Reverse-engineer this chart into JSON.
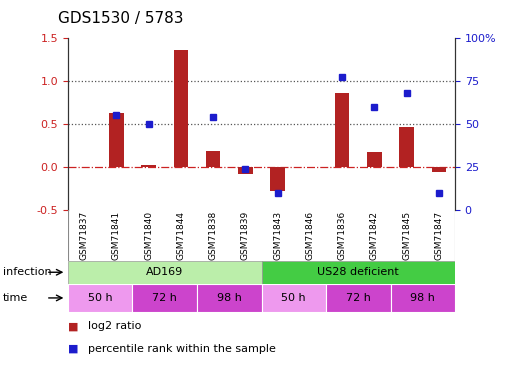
{
  "title": "GDS1530 / 5783",
  "samples": [
    "GSM71837",
    "GSM71841",
    "GSM71840",
    "GSM71844",
    "GSM71838",
    "GSM71839",
    "GSM71843",
    "GSM71846",
    "GSM71836",
    "GSM71842",
    "GSM71845",
    "GSM71847"
  ],
  "log2_ratio": [
    0.0,
    0.63,
    0.02,
    1.35,
    0.18,
    -0.08,
    -0.28,
    0.0,
    0.86,
    0.17,
    0.46,
    -0.06
  ],
  "percentile_rank": [
    null,
    55,
    50,
    null,
    54,
    24,
    10,
    null,
    77,
    60,
    68,
    10
  ],
  "bar_color": "#b22222",
  "dot_color": "#1c1ccc",
  "ylim_left": [
    -0.5,
    1.5
  ],
  "ylim_right": [
    0,
    100
  ],
  "yticks_left": [
    -0.5,
    0.0,
    0.5,
    1.0,
    1.5
  ],
  "yticks_right": [
    0,
    25,
    50,
    75,
    100
  ],
  "ytick_labels_right": [
    "0",
    "25",
    "50",
    "75",
    "100%"
  ],
  "hlines": [
    0.0,
    0.5,
    1.0
  ],
  "hline_styles": [
    "dashdot",
    "dotted",
    "dotted"
  ],
  "hline_colors": [
    "#cc2222",
    "#555555",
    "#555555"
  ],
  "infection_groups": [
    {
      "text": "AD169",
      "start": 0,
      "end": 5,
      "color": "#bbeeaa"
    },
    {
      "text": "US28 deficient",
      "start": 6,
      "end": 11,
      "color": "#44cc44"
    }
  ],
  "time_groups": [
    {
      "text": "50 h",
      "indices": [
        0,
        1
      ],
      "color": "#ee99ee"
    },
    {
      "text": "72 h",
      "indices": [
        2,
        3
      ],
      "color": "#cc44cc"
    },
    {
      "text": "98 h",
      "indices": [
        4,
        5
      ],
      "color": "#cc44cc"
    },
    {
      "text": "50 h",
      "indices": [
        6,
        7
      ],
      "color": "#ee99ee"
    },
    {
      "text": "72 h",
      "indices": [
        8,
        9
      ],
      "color": "#cc44cc"
    },
    {
      "text": "98 h",
      "indices": [
        10,
        11
      ],
      "color": "#cc44cc"
    }
  ],
  "legend_bar_label": "log2 ratio",
  "legend_dot_label": "percentile rank within the sample",
  "infection_row_label": "infection",
  "time_row_label": "time",
  "background_color": "#ffffff",
  "tick_label_color_left": "#cc2222",
  "tick_label_color_right": "#1c1ccc",
  "sample_bg_color": "#cccccc",
  "sample_divider_color": "#ffffff"
}
